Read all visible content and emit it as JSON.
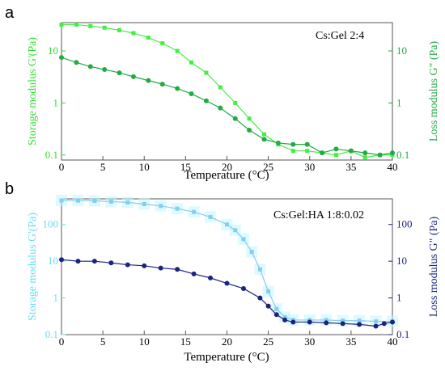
{
  "chart_data": [
    {
      "panel_label": "a",
      "type": "line",
      "annotation": "Cs:Gel 2:4",
      "xlabel": "Temperature (°C)",
      "ylabel_left": "Storage modulus G'(Pa)",
      "ylabel_right": "Loss modulus G\" (Pa)",
      "xlim": [
        0,
        40
      ],
      "xticks": [
        0,
        5,
        10,
        15,
        20,
        25,
        30,
        35,
        40
      ],
      "ylim": [
        0.08,
        35
      ],
      "yscale": "log",
      "yticks_left": [
        "10",
        "1",
        "0.1"
      ],
      "yticks_left_values": [
        10,
        1,
        0.1
      ],
      "yticks_right": [
        "10",
        "1",
        "0.1"
      ],
      "yticks_right_values": [
        10,
        1,
        0.1
      ],
      "left_axis_color": "#33dd33",
      "right_axis_color": "#22aa44",
      "grid": false,
      "series": [
        {
          "role": "storage",
          "marker": "square",
          "color": "#44ee44",
          "x": [
            0,
            1.8,
            3.5,
            5.2,
            7,
            8.7,
            10.5,
            12.2,
            14,
            15.7,
            17.5,
            19.2,
            21,
            22.7,
            24.5,
            26.2,
            28,
            29.7,
            31.5,
            33.2,
            35,
            36.7,
            38.5,
            40
          ],
          "y": [
            32,
            32,
            30,
            28,
            25,
            22,
            18,
            14,
            10,
            6,
            3.8,
            2,
            1,
            0.5,
            0.25,
            0.16,
            0.12,
            0.12,
            0.11,
            0.1,
            0.12,
            0.09,
            0.1,
            0.1
          ]
        },
        {
          "role": "loss",
          "marker": "circle",
          "color": "#22aa44",
          "x": [
            0,
            1.8,
            3.5,
            5.2,
            7,
            8.7,
            10.5,
            12.2,
            14,
            15.7,
            17.5,
            19.2,
            21,
            22.7,
            24.5,
            26.2,
            28,
            29.7,
            31.5,
            33.2,
            35,
            36.7,
            38.5,
            40
          ],
          "y": [
            7.5,
            6,
            5,
            4.4,
            3.8,
            3.2,
            2.7,
            2.3,
            1.9,
            1.5,
            1.1,
            0.8,
            0.5,
            0.3,
            0.2,
            0.17,
            0.16,
            0.16,
            0.11,
            0.13,
            0.12,
            0.11,
            0.1,
            0.11
          ]
        }
      ]
    },
    {
      "panel_label": "b",
      "type": "line",
      "annotation": "Cs:Gel:HA 1:8:0.02",
      "xlabel": "Temperature (°C)",
      "ylabel_left": "Storage modulus G'(Pa)",
      "ylabel_right": "Loss modulus G\" (Pa)",
      "xlim": [
        0,
        40
      ],
      "xticks": [
        0,
        5,
        10,
        15,
        20,
        25,
        30,
        35,
        40
      ],
      "ylim": [
        0.1,
        500
      ],
      "yscale": "log",
      "yticks_left": [
        "100",
        "10",
        "1",
        "0.1"
      ],
      "yticks_left_values": [
        100,
        10,
        1,
        0.1
      ],
      "yticks_right": [
        "100",
        "10",
        "1",
        "0.1"
      ],
      "yticks_right_values": [
        100,
        10,
        1,
        0.1
      ],
      "left_axis_color": "#66ddee",
      "right_axis_color": "#1a237e",
      "grid": false,
      "series": [
        {
          "role": "storage",
          "marker": "square",
          "color": "#88ccee",
          "x": [
            0,
            2,
            4,
            6,
            8,
            10,
            12,
            14,
            16,
            18,
            20,
            21,
            22,
            23,
            24,
            25,
            26,
            27,
            28,
            30,
            32,
            34,
            36,
            38,
            40
          ],
          "y": [
            450,
            450,
            440,
            420,
            400,
            360,
            320,
            270,
            220,
            160,
            100,
            70,
            40,
            18,
            6,
            1.5,
            0.5,
            0.3,
            0.25,
            0.25,
            0.25,
            0.24,
            0.24,
            0.23,
            0.23
          ]
        },
        {
          "role": "loss",
          "marker": "circle",
          "color": "#1a237e",
          "x": [
            0,
            2,
            4,
            6,
            8,
            10,
            12,
            14,
            16,
            18,
            20,
            22,
            24,
            25,
            26,
            27,
            28,
            30,
            32,
            34,
            36,
            38,
            39,
            40
          ],
          "y": [
            11,
            10,
            10,
            9,
            8,
            7.5,
            6.5,
            6,
            4.5,
            3.5,
            2.5,
            1.8,
            1,
            0.6,
            0.35,
            0.25,
            0.22,
            0.22,
            0.21,
            0.2,
            0.19,
            0.17,
            0.2,
            0.22
          ]
        }
      ]
    }
  ]
}
